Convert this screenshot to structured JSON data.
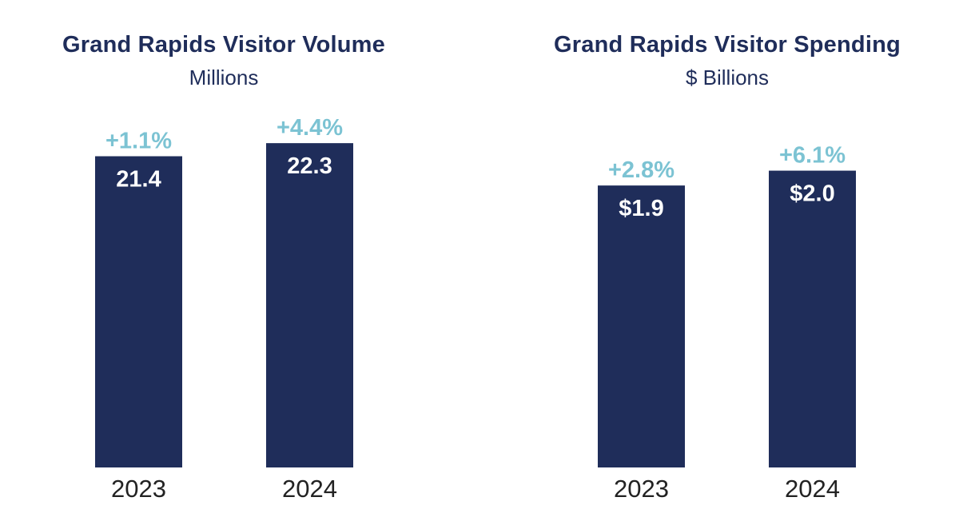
{
  "colors": {
    "bar": "#1f2d5a",
    "change_label": "#7cc3d3",
    "value_label": "#ffffff",
    "tick_label": "#222222"
  },
  "chart_data": [
    {
      "type": "bar",
      "title": "Grand Rapids Visitor Volume",
      "subtitle": "Millions",
      "categories": [
        "2023",
        "2024"
      ],
      "values": [
        21.4,
        22.3
      ],
      "value_labels": [
        "21.4",
        "22.3"
      ],
      "change_labels": [
        "+1.1%",
        "+4.4%"
      ],
      "ylim": [
        0,
        25
      ],
      "grid": false
    },
    {
      "type": "bar",
      "title": "Grand Rapids Visitor Spending",
      "subtitle": "$ Billions",
      "categories": [
        "2023",
        "2024"
      ],
      "values": [
        1.9,
        2.0
      ],
      "value_labels": [
        "$1.9",
        "$2.0"
      ],
      "change_labels": [
        "+2.8%",
        "+6.1%"
      ],
      "ylim": [
        0,
        2.45
      ],
      "grid": false
    }
  ]
}
